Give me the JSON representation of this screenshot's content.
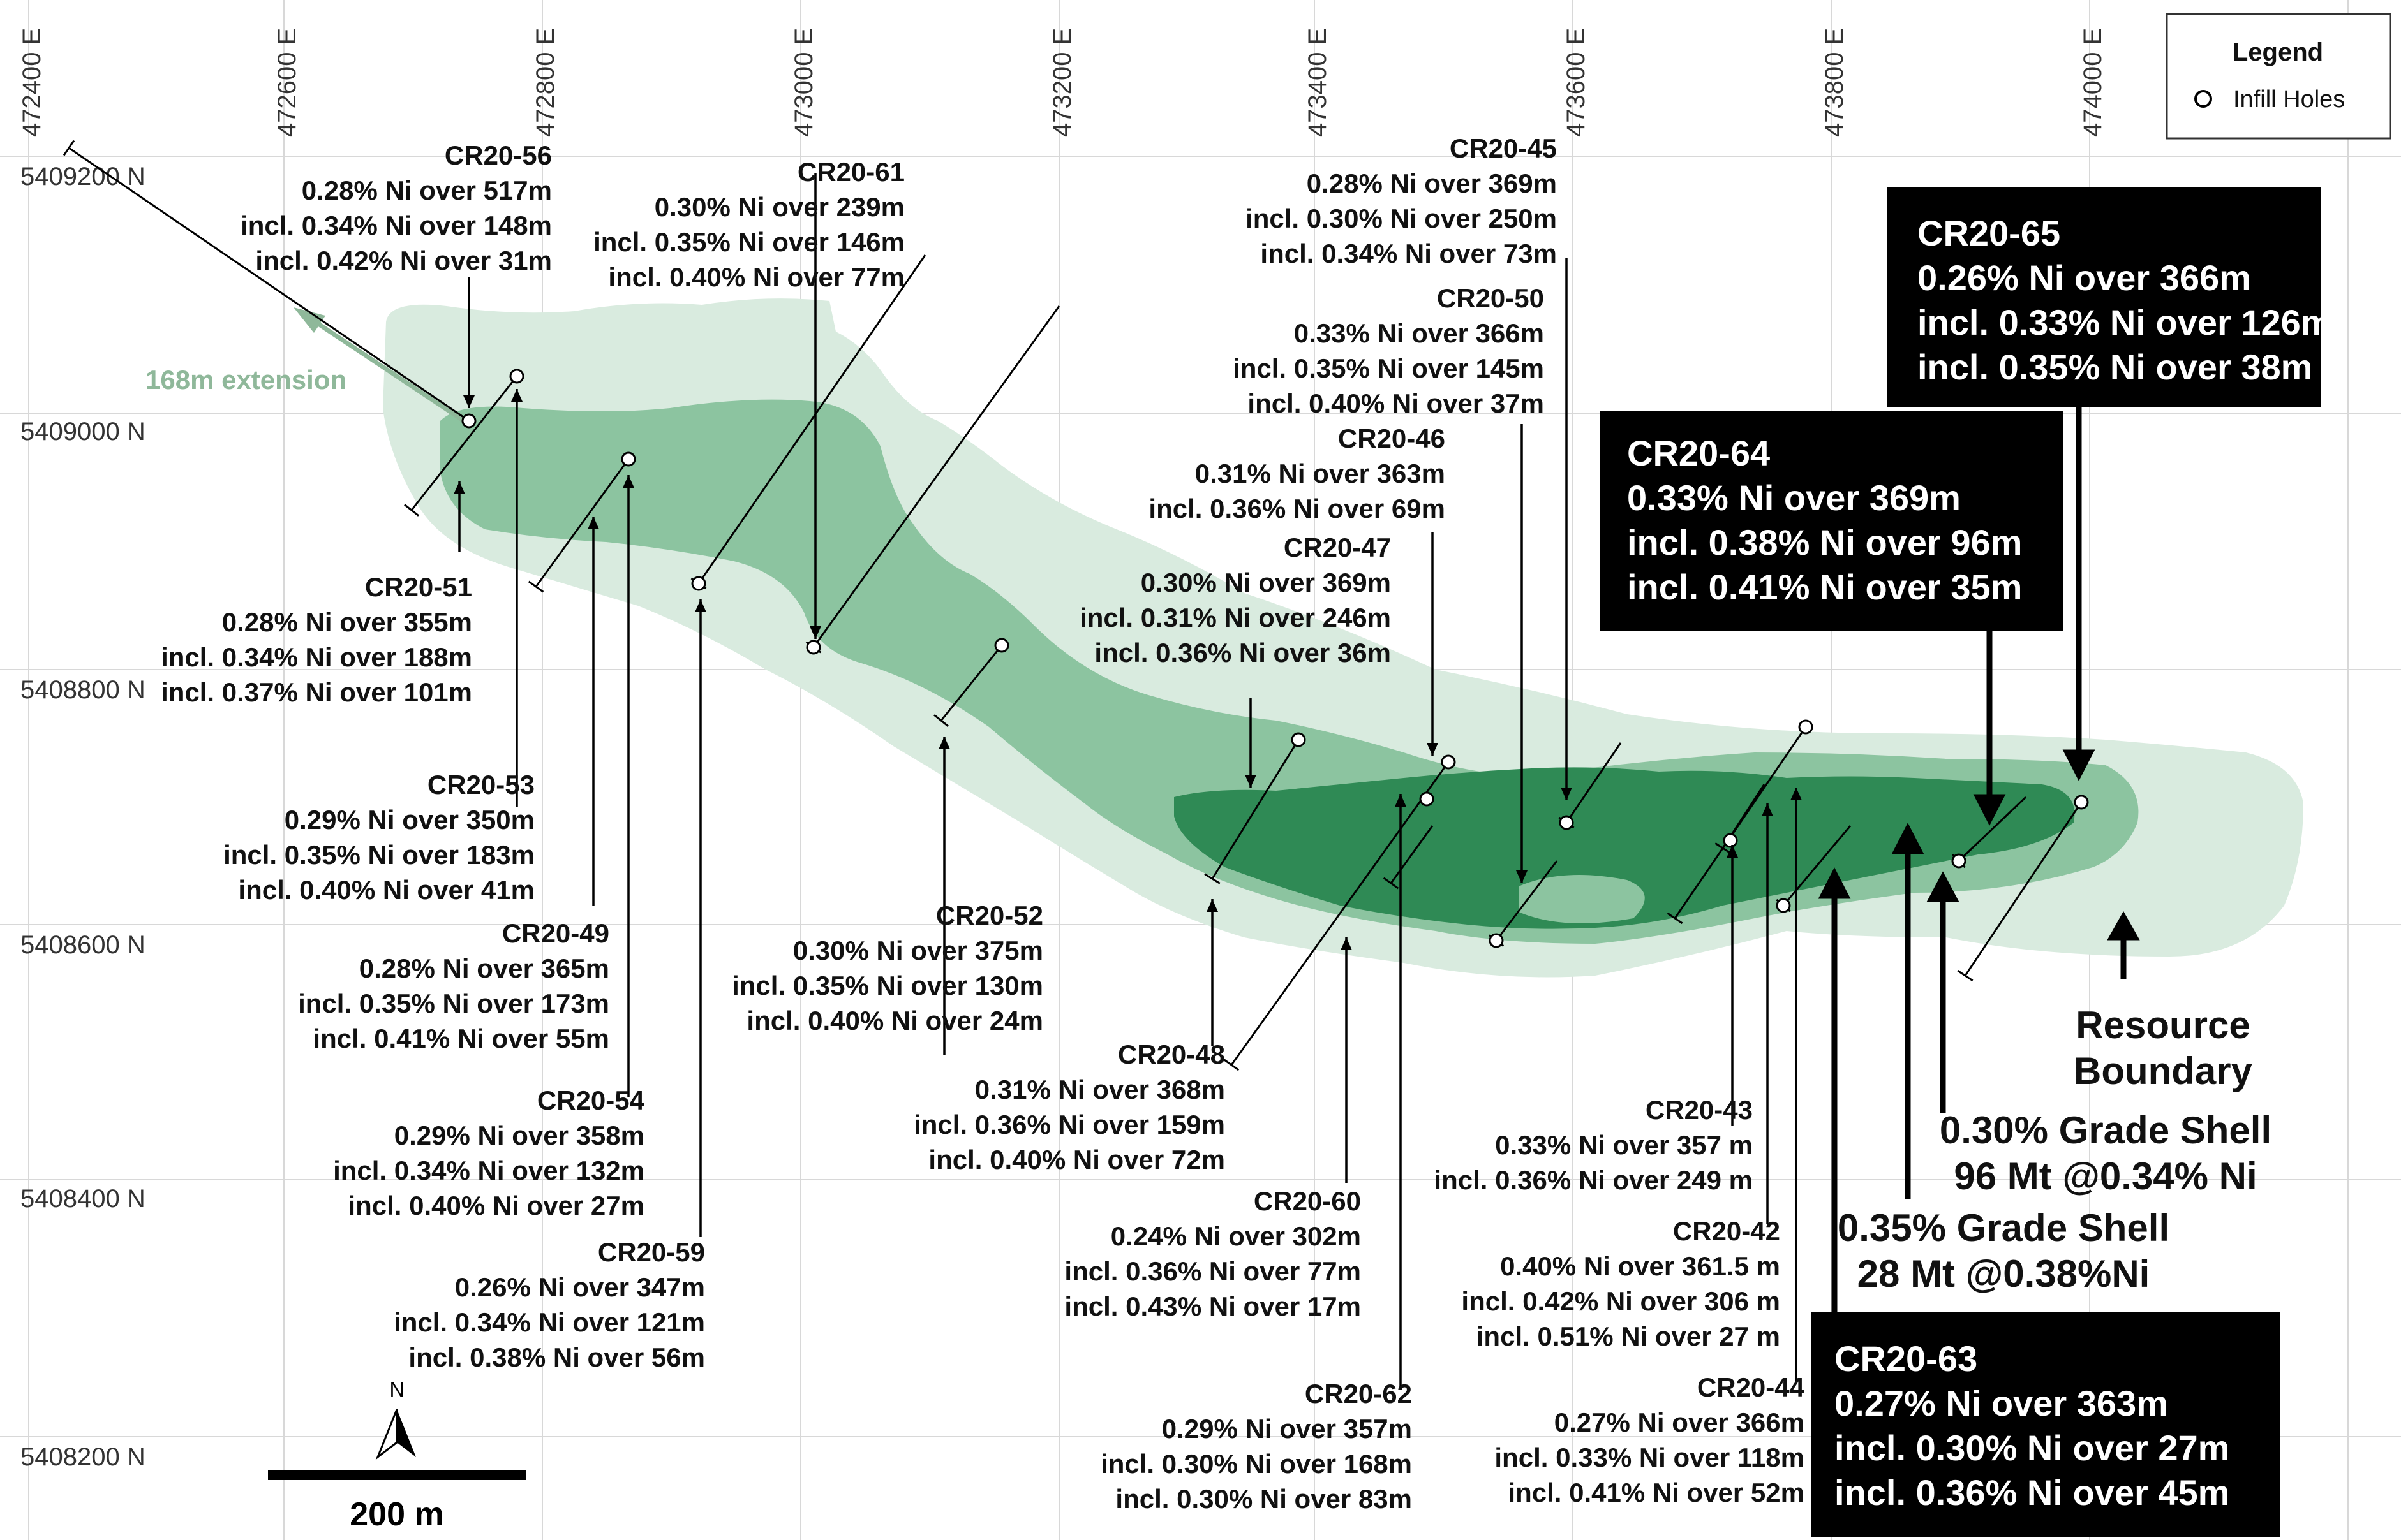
{
  "easting_labels": [
    "472400 E",
    "472600 E",
    "472800 E",
    "473000 E",
    "473200 E",
    "473400 E",
    "473600 E",
    "473800 E",
    "474000 E"
  ],
  "northing_labels": [
    "5409200 N",
    "5409000 N",
    "5408800 N",
    "5408600 N",
    "5408400 N",
    "5408200 N"
  ],
  "legend": {
    "title": "Legend",
    "item": "Infill Holes"
  },
  "extension_label": "168m extension",
  "scale": {
    "label": "200 m",
    "north": "N"
  },
  "annotations": {
    "resource_boundary": [
      "Resource",
      "Boundary"
    ],
    "shell_030": [
      "0.30% Grade Shell",
      "96 Mt @0.34% Ni"
    ],
    "shell_035": [
      "0.35% Grade Shell",
      "28 Mt @0.38%Ni"
    ]
  },
  "colors": {
    "outer_zone": "#d9ebdf",
    "mid_zone": "#8cc4a0",
    "core_zone": "#2f8a55",
    "extension": "#8fb89a"
  },
  "holes": [
    {
      "id": "CR20-56",
      "lines": [
        "0.28% Ni over 517m",
        "incl. 0.34% Ni over 148m",
        "incl. 0.42% Ni over 31m"
      ]
    },
    {
      "id": "CR20-61",
      "lines": [
        "0.30% Ni over 239m",
        "incl. 0.35% Ni over 146m",
        "incl. 0.40% Ni over 77m"
      ]
    },
    {
      "id": "CR20-45",
      "lines": [
        "0.28% Ni over 369m",
        "incl. 0.30% Ni over 250m",
        "incl. 0.34% Ni over 73m"
      ]
    },
    {
      "id": "CR20-50",
      "lines": [
        "0.33% Ni over 366m",
        "incl. 0.35% Ni over 145m",
        "incl. 0.40% Ni over 37m"
      ]
    },
    {
      "id": "CR20-46",
      "lines": [
        "0.31% Ni over 363m",
        "incl. 0.36% Ni over 69m"
      ]
    },
    {
      "id": "CR20-47",
      "lines": [
        "0.30% Ni over 369m",
        "incl. 0.31% Ni over 246m",
        "incl. 0.36% Ni over 36m"
      ]
    },
    {
      "id": "CR20-51",
      "lines": [
        "0.28% Ni over 355m",
        "incl. 0.34% Ni over 188m",
        "incl. 0.37% Ni over 101m"
      ]
    },
    {
      "id": "CR20-53",
      "lines": [
        "0.29% Ni over 350m",
        "incl. 0.35% Ni over 183m",
        "incl. 0.40% Ni over 41m"
      ]
    },
    {
      "id": "CR20-49",
      "lines": [
        "0.28% Ni over 365m",
        "incl. 0.35% Ni over 173m",
        "incl. 0.41% Ni over 55m"
      ]
    },
    {
      "id": "CR20-54",
      "lines": [
        "0.29% Ni over 358m",
        "incl. 0.34% Ni over 132m",
        "incl. 0.40% Ni over 27m"
      ]
    },
    {
      "id": "CR20-59",
      "lines": [
        "0.26% Ni over 347m",
        "incl. 0.34% Ni over 121m",
        "incl. 0.38% Ni over 56m"
      ]
    },
    {
      "id": "CR20-52",
      "lines": [
        "0.30% Ni over 375m",
        "incl. 0.35% Ni over 130m",
        "incl. 0.40% Ni over 24m"
      ]
    },
    {
      "id": "CR20-48",
      "lines": [
        "0.31% Ni over 368m",
        "incl. 0.36% Ni over 159m",
        "incl. 0.40% Ni over 72m"
      ]
    },
    {
      "id": "CR20-60",
      "lines": [
        "0.24% Ni over 302m",
        "incl. 0.36% Ni over 77m",
        "incl. 0.43% Ni over 17m"
      ]
    },
    {
      "id": "CR20-62",
      "lines": [
        "0.29% Ni over 357m",
        "incl. 0.30% Ni over 168m",
        "incl. 0.30% Ni over 83m"
      ]
    },
    {
      "id": "CR20-43",
      "lines": [
        "0.33% Ni over 357 m",
        "incl. 0.36% Ni over 249 m"
      ]
    },
    {
      "id": "CR20-42",
      "lines": [
        "0.40% Ni over 361.5 m",
        "incl. 0.42% Ni over 306 m",
        "incl. 0.51% Ni over 27 m"
      ]
    },
    {
      "id": "CR20-44",
      "lines": [
        "0.27% Ni over 366m",
        "incl. 0.33% Ni over 118m",
        "incl. 0.41% Ni over 52m"
      ]
    }
  ],
  "highlight_holes": [
    {
      "id": "CR20-65",
      "lines": [
        "0.26% Ni over 366m",
        "incl. 0.33% Ni over 126m",
        "incl. 0.35% Ni over 38m"
      ]
    },
    {
      "id": "CR20-64",
      "lines": [
        "0.33% Ni over 369m",
        "incl. 0.38% Ni over 96m",
        "incl. 0.41% Ni over 35m"
      ]
    },
    {
      "id": "CR20-63",
      "lines": [
        "0.27% Ni over 363m",
        "incl. 0.30% Ni over 27m",
        "incl. 0.36% Ni over 45m"
      ]
    }
  ]
}
